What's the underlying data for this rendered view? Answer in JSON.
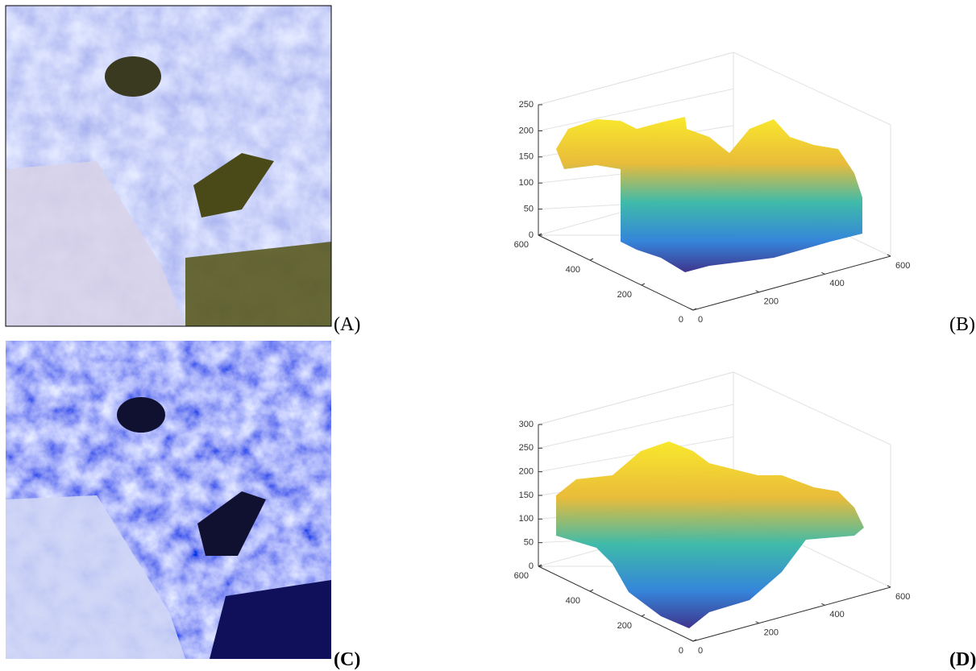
{
  "panels": [
    {
      "label": "(A)"
    },
    {
      "label": "(B)",
      "zlim": [
        0,
        250
      ],
      "zticks": [
        0,
        50,
        100,
        150,
        200,
        250
      ],
      "xlim": [
        0,
        600
      ],
      "xticks": [
        0,
        200,
        400,
        600
      ],
      "ylim": [
        0,
        600
      ],
      "yticks": [
        0,
        200,
        400,
        600
      ]
    },
    {
      "label": "(C)"
    },
    {
      "label": "(D)",
      "zlim": [
        0,
        300
      ],
      "zticks": [
        0,
        50,
        100,
        150,
        200,
        250,
        300
      ],
      "xlim": [
        0,
        600
      ],
      "xticks": [
        0,
        200,
        400,
        600
      ],
      "ylim": [
        0,
        600
      ],
      "yticks": [
        0,
        200,
        400,
        600
      ]
    }
  ]
}
